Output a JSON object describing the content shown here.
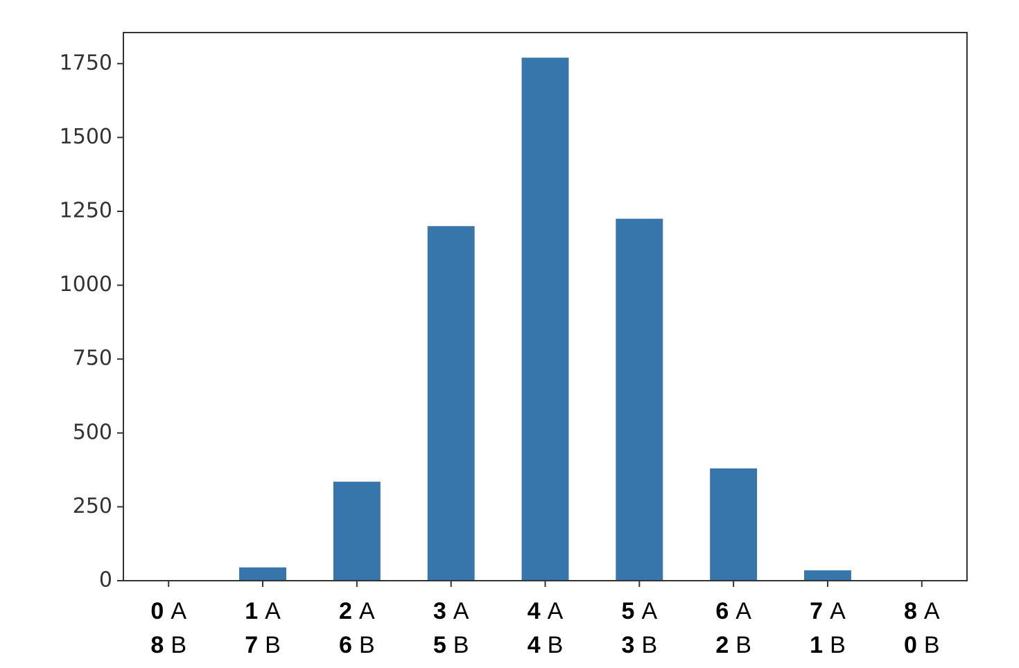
{
  "chart_data": {
    "type": "bar",
    "categories": [
      [
        "0",
        "8"
      ],
      [
        "1",
        "7"
      ],
      [
        "2",
        "6"
      ],
      [
        "3",
        "5"
      ],
      [
        "4",
        "4"
      ],
      [
        "5",
        "3"
      ],
      [
        "6",
        "2"
      ],
      [
        "7",
        "1"
      ],
      [
        "8",
        "0"
      ]
    ],
    "category_units": [
      "A",
      "B"
    ],
    "values": [
      0,
      45,
      335,
      1200,
      1770,
      1225,
      380,
      35,
      0
    ],
    "color": "#3776ab",
    "ylim": [
      0,
      1855
    ],
    "yticks": [
      0,
      250,
      500,
      750,
      1000,
      1250,
      1500,
      1750
    ],
    "grid": false
  }
}
